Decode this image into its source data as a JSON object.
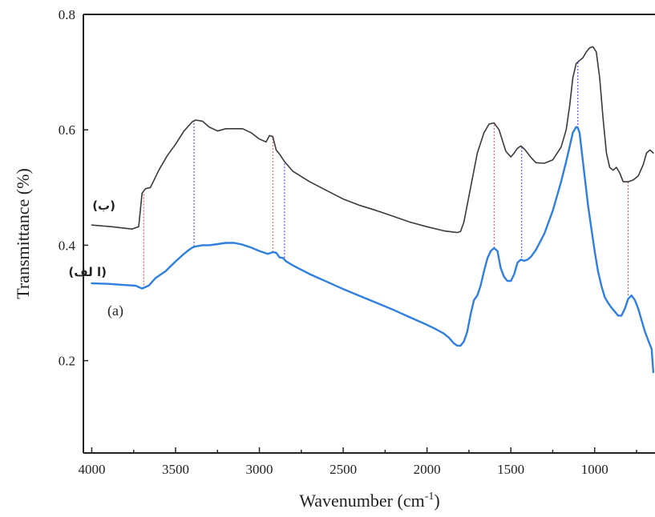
{
  "chart_data": {
    "type": "line",
    "xlabel": "Wavenumber (cm",
    "xlabel_sup": "-1",
    "xlabel_end": ")",
    "ylabel": "Transmittance (%)",
    "xlim": [
      4050,
      640
    ],
    "ylim": [
      0.04,
      0.8
    ],
    "x_reversed": true,
    "x_ticks": [
      4000,
      3500,
      3000,
      2500,
      2000,
      1500,
      1000
    ],
    "y_ticks": [
      0.2,
      0.4,
      0.6,
      0.8
    ],
    "y_tick_labels": [
      "0.2",
      "0.4",
      "0.6",
      "0.8"
    ],
    "panel_label": "(a)",
    "grid": false,
    "series": [
      {
        "name": "(ب)",
        "color": "#3a3a3a",
        "x": [
          4000,
          3880,
          3760,
          3720,
          3700,
          3680,
          3650,
          3600,
          3550,
          3500,
          3450,
          3400,
          3380,
          3340,
          3300,
          3250,
          3200,
          3100,
          3050,
          3000,
          2960,
          2940,
          2920,
          2900,
          2880,
          2850,
          2800,
          2700,
          2600,
          2500,
          2400,
          2300,
          2200,
          2100,
          2000,
          1900,
          1820,
          1800,
          1780,
          1740,
          1700,
          1660,
          1630,
          1600,
          1570,
          1530,
          1500,
          1480,
          1460,
          1440,
          1420,
          1400,
          1380,
          1350,
          1300,
          1250,
          1200,
          1170,
          1150,
          1130,
          1110,
          1090,
          1070,
          1050,
          1030,
          1010,
          990,
          970,
          950,
          930,
          910,
          890,
          870,
          850,
          830,
          800,
          770,
          740,
          710,
          690,
          670,
          650
        ],
        "y": [
          0.435,
          0.432,
          0.428,
          0.432,
          0.49,
          0.498,
          0.5,
          0.53,
          0.555,
          0.575,
          0.598,
          0.614,
          0.617,
          0.615,
          0.605,
          0.598,
          0.602,
          0.602,
          0.595,
          0.584,
          0.579,
          0.59,
          0.588,
          0.565,
          0.558,
          0.545,
          0.528,
          0.51,
          0.495,
          0.48,
          0.469,
          0.46,
          0.45,
          0.44,
          0.432,
          0.425,
          0.422,
          0.424,
          0.44,
          0.5,
          0.56,
          0.595,
          0.61,
          0.612,
          0.6,
          0.563,
          0.553,
          0.56,
          0.568,
          0.572,
          0.567,
          0.56,
          0.552,
          0.543,
          0.542,
          0.548,
          0.57,
          0.6,
          0.64,
          0.69,
          0.715,
          0.72,
          0.725,
          0.735,
          0.742,
          0.744,
          0.735,
          0.69,
          0.62,
          0.56,
          0.535,
          0.53,
          0.535,
          0.525,
          0.51,
          0.51,
          0.513,
          0.52,
          0.54,
          0.56,
          0.565,
          0.56
        ]
      },
      {
        "name": "(ا لف)",
        "color": "#2f7fe0",
        "x": [
          4000,
          3900,
          3800,
          3740,
          3700,
          3660,
          3620,
          3560,
          3500,
          3450,
          3420,
          3400,
          3380,
          3340,
          3300,
          3250,
          3200,
          3150,
          3100,
          3050,
          3000,
          2950,
          2920,
          2900,
          2880,
          2860,
          2840,
          2800,
          2700,
          2600,
          2500,
          2400,
          2300,
          2200,
          2100,
          2000,
          1950,
          1900,
          1870,
          1840,
          1820,
          1800,
          1780,
          1760,
          1740,
          1720,
          1700,
          1680,
          1660,
          1640,
          1620,
          1600,
          1580,
          1560,
          1540,
          1520,
          1500,
          1480,
          1460,
          1440,
          1420,
          1400,
          1380,
          1350,
          1300,
          1250,
          1200,
          1170,
          1150,
          1130,
          1110,
          1100,
          1090,
          1080,
          1060,
          1040,
          1020,
          1000,
          980,
          960,
          940,
          920,
          900,
          880,
          860,
          840,
          820,
          800,
          780,
          760,
          740,
          720,
          700,
          680,
          660,
          650
        ],
        "y": [
          0.334,
          0.333,
          0.331,
          0.33,
          0.325,
          0.33,
          0.343,
          0.355,
          0.372,
          0.385,
          0.392,
          0.396,
          0.398,
          0.4,
          0.4,
          0.402,
          0.404,
          0.404,
          0.401,
          0.396,
          0.39,
          0.385,
          0.388,
          0.387,
          0.379,
          0.378,
          0.372,
          0.365,
          0.35,
          0.337,
          0.324,
          0.312,
          0.3,
          0.288,
          0.275,
          0.262,
          0.255,
          0.247,
          0.24,
          0.23,
          0.226,
          0.226,
          0.233,
          0.25,
          0.28,
          0.305,
          0.313,
          0.33,
          0.355,
          0.377,
          0.39,
          0.395,
          0.39,
          0.36,
          0.345,
          0.338,
          0.338,
          0.35,
          0.37,
          0.375,
          0.373,
          0.375,
          0.38,
          0.392,
          0.42,
          0.46,
          0.51,
          0.545,
          0.57,
          0.595,
          0.605,
          0.603,
          0.595,
          0.57,
          0.52,
          0.47,
          0.43,
          0.39,
          0.355,
          0.33,
          0.31,
          0.3,
          0.292,
          0.285,
          0.278,
          0.278,
          0.29,
          0.307,
          0.313,
          0.305,
          0.29,
          0.27,
          0.25,
          0.235,
          0.22,
          0.18
        ]
      }
    ],
    "marker_lines": [
      {
        "x": 3690,
        "y_from": 0.325,
        "y_to": 0.49,
        "color": "#d64a4a"
      },
      {
        "x": 3390,
        "y_from": 0.398,
        "y_to": 0.617,
        "color": "#3a3ad6"
      },
      {
        "x": 2920,
        "y_from": 0.388,
        "y_to": 0.59,
        "color": "#d64a4a"
      },
      {
        "x": 2850,
        "y_from": 0.378,
        "y_to": 0.545,
        "color": "#3a3ad6"
      },
      {
        "x": 1600,
        "y_from": 0.395,
        "y_to": 0.612,
        "color": "#d64a4a"
      },
      {
        "x": 1435,
        "y_from": 0.373,
        "y_to": 0.572,
        "color": "#3a3ad6"
      },
      {
        "x": 1100,
        "y_from": 0.603,
        "y_to": 0.72,
        "color": "#3a3ad6"
      },
      {
        "x": 800,
        "y_from": 0.313,
        "y_to": 0.51,
        "color": "#d64a4a"
      }
    ]
  }
}
